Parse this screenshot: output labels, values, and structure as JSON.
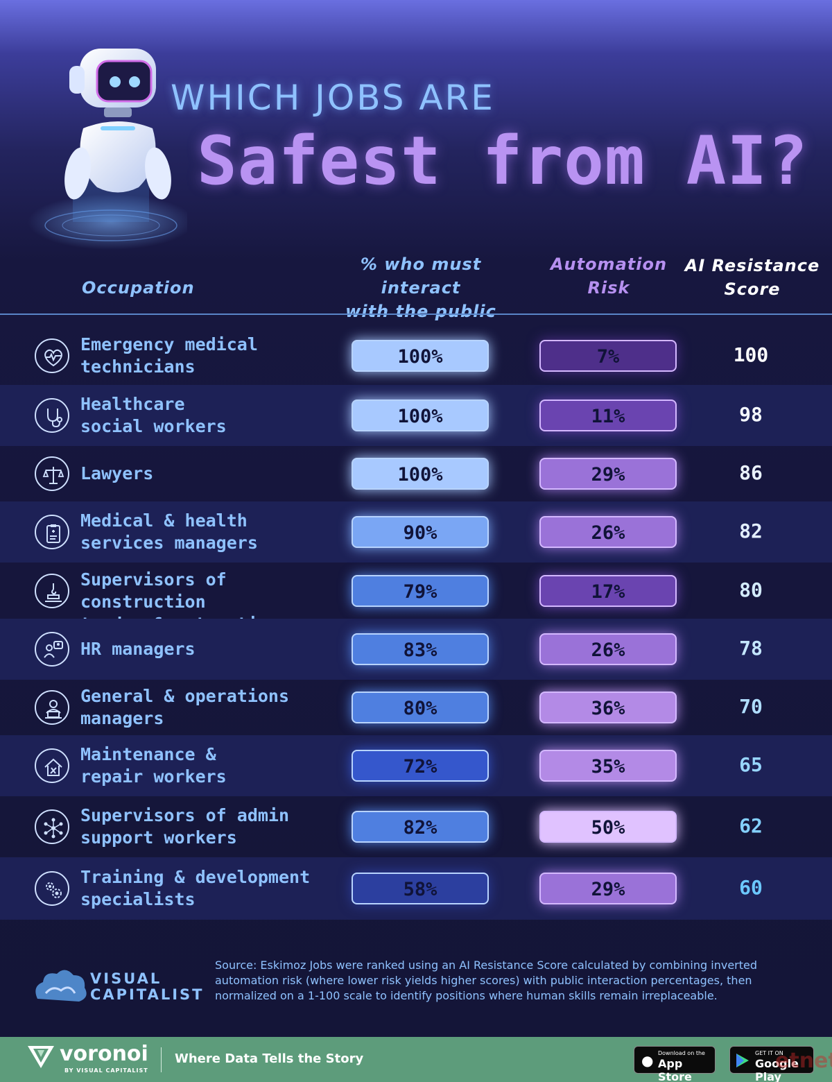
{
  "title": {
    "line1": "WHICH JOBS ARE",
    "line2": "Safest from AI?"
  },
  "headers": {
    "occupation": "Occupation",
    "public": "% who must interact\nwith the public",
    "automation": "Automation\nRisk",
    "score": "AI Resistance\nScore"
  },
  "colors": {
    "label": "#8fc2ff",
    "public_scale": [
      "#2c3f9f",
      "#3557cc",
      "#4f7fe0",
      "#7aa6f4",
      "#a8c9ff"
    ],
    "automation_scale": [
      "#4e2f8a",
      "#6a44b0",
      "#9a72d8",
      "#b38ae6",
      "#e0c2ff"
    ]
  },
  "chart_data": {
    "type": "table",
    "columns": [
      "Occupation",
      "% who must interact with the public",
      "Automation Risk",
      "AI Resistance Score"
    ],
    "rows": [
      {
        "occupation": "Emergency medical\ntechnicians",
        "icon": "heart-pulse-icon",
        "public": "100%",
        "public_value": 100,
        "automation": "7%",
        "automation_value": 7,
        "score": "100",
        "score_color": "#ffffff"
      },
      {
        "occupation": "Healthcare\nsocial workers",
        "icon": "stethoscope-icon",
        "public": "100%",
        "public_value": 100,
        "automation": "11%",
        "automation_value": 11,
        "score": "98",
        "score_color": "#f4f8ff"
      },
      {
        "occupation": "Lawyers",
        "icon": "scales-icon",
        "public": "100%",
        "public_value": 100,
        "automation": "29%",
        "automation_value": 29,
        "score": "86",
        "score_color": "#eaf2ff"
      },
      {
        "occupation": "Medical & health\nservices managers",
        "icon": "clipboard-medical-icon",
        "public": "90%",
        "public_value": 90,
        "automation": "26%",
        "automation_value": 26,
        "score": "82",
        "score_color": "#e2eeff"
      },
      {
        "occupation": "Supervisors of construction\ntrades & extraction workers",
        "icon": "crane-hook-icon",
        "public": "79%",
        "public_value": 79,
        "automation": "17%",
        "automation_value": 17,
        "score": "80",
        "score_color": "#d4ecff"
      },
      {
        "occupation": "HR managers",
        "icon": "hr-people-icon",
        "public": "83%",
        "public_value": 83,
        "automation": "26%",
        "automation_value": 26,
        "score": "78",
        "score_color": "#c4e6ff"
      },
      {
        "occupation": "General & operations\nmanagers",
        "icon": "manager-laptop-icon",
        "public": "80%",
        "public_value": 80,
        "automation": "36%",
        "automation_value": 36,
        "score": "70",
        "score_color": "#b0deff"
      },
      {
        "occupation": "Maintenance &\nrepair workers",
        "icon": "house-tools-icon",
        "public": "72%",
        "public_value": 72,
        "automation": "35%",
        "automation_value": 35,
        "score": "65",
        "score_color": "#98d6ff"
      },
      {
        "occupation": "Supervisors of admin\nsupport workers",
        "icon": "network-people-icon",
        "public": "82%",
        "public_value": 82,
        "automation": "50%",
        "automation_value": 50,
        "score": "62",
        "score_color": "#84d0ff"
      },
      {
        "occupation": "Training & development\nspecialists",
        "icon": "gears-person-icon",
        "public": "58%",
        "public_value": 58,
        "automation": "29%",
        "automation_value": 29,
        "score": "60",
        "score_color": "#6cc8ff"
      }
    ]
  },
  "footer": {
    "brand_line1": "VISUAL",
    "brand_line2": "CAPITALIST",
    "source": "Source: Eskimoz Jobs were ranked using an AI Resistance Score calculated by combining inverted automation risk (where lower risk yields higher scores) with public interaction percentages, then normalized on a 1-100 scale to identify positions where human skills remain irreplaceable.",
    "voronoi_name": "voronoi",
    "voronoi_sub": "BY VISUAL CAPITALIST",
    "tagline": "Where Data Tells the Story",
    "appstore_small": "Download on the",
    "appstore_big": "App Store",
    "googleplay_small": "GET IT ON",
    "googleplay_big": "Google Play",
    "watermark": "etnet"
  }
}
